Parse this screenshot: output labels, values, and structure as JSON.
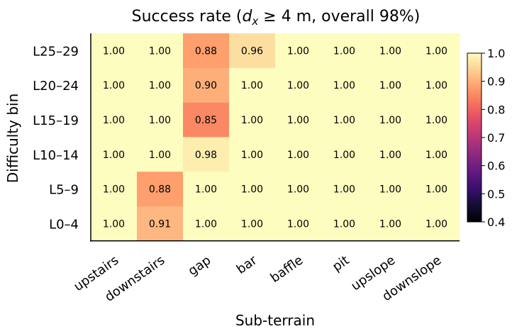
{
  "chart_data": {
    "type": "heatmap",
    "title_prefix": "Success rate  (",
    "title_dx": "d",
    "title_sub": "x",
    "title_rel": " ≥ 4 m, overall 98%)",
    "xlabel": "Sub-terrain",
    "ylabel": "Difficulty bin",
    "x_categories": [
      "upstairs",
      "downstairs",
      "gap",
      "bar",
      "baffle",
      "pit",
      "upslope",
      "downslope"
    ],
    "y_categories": [
      "L25–29",
      "L20–24",
      "L15–19",
      "L10–14",
      "L5–9",
      "L0–4"
    ],
    "values": [
      [
        1.0,
        1.0,
        0.88,
        0.96,
        1.0,
        1.0,
        1.0,
        1.0
      ],
      [
        1.0,
        1.0,
        0.9,
        1.0,
        1.0,
        1.0,
        1.0,
        1.0
      ],
      [
        1.0,
        1.0,
        0.85,
        1.0,
        1.0,
        1.0,
        1.0,
        1.0
      ],
      [
        1.0,
        1.0,
        0.98,
        1.0,
        1.0,
        1.0,
        1.0,
        1.0
      ],
      [
        1.0,
        0.88,
        1.0,
        1.0,
        1.0,
        1.0,
        1.0,
        1.0
      ],
      [
        1.0,
        0.91,
        1.0,
        1.0,
        1.0,
        1.0,
        1.0,
        1.0
      ]
    ],
    "cell_labels": [
      [
        "1.00",
        "1.00",
        "0.88",
        "0.96",
        "1.00",
        "1.00",
        "1.00",
        "1.00"
      ],
      [
        "1.00",
        "1.00",
        "0.90",
        "1.00",
        "1.00",
        "1.00",
        "1.00",
        "1.00"
      ],
      [
        "1.00",
        "1.00",
        "0.85",
        "1.00",
        "1.00",
        "1.00",
        "1.00",
        "1.00"
      ],
      [
        "1.00",
        "1.00",
        "0.98",
        "1.00",
        "1.00",
        "1.00",
        "1.00",
        "1.00"
      ],
      [
        "1.00",
        "0.88",
        "1.00",
        "1.00",
        "1.00",
        "1.00",
        "1.00",
        "1.00"
      ],
      [
        "1.00",
        "0.91",
        "1.00",
        "1.00",
        "1.00",
        "1.00",
        "1.00",
        "1.00"
      ]
    ],
    "colormap": "magma",
    "vmin": 0.4,
    "vmax": 1.0,
    "colorbar_ticks": [
      0.4,
      0.5,
      0.6,
      0.7,
      0.8,
      0.9,
      1.0
    ],
    "colorbar_tick_labels": [
      "0.4",
      "0.5",
      "0.6",
      "0.7",
      "0.8",
      "0.9",
      "1.0"
    ],
    "grid": false,
    "colorbar_position": "right"
  }
}
